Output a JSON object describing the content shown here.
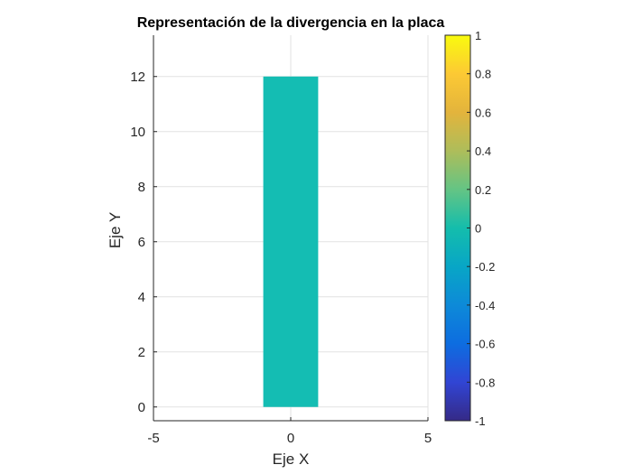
{
  "chart_data": {
    "type": "heatmap",
    "title": "Representación de la divergencia en la placa",
    "xlabel": "Eje X",
    "ylabel": "Eje Y",
    "xlim": [
      -5,
      5
    ],
    "ylim": [
      -0.5,
      13.5
    ],
    "xticks": [
      -5,
      0,
      5
    ],
    "yticks": [
      0,
      2,
      4,
      6,
      8,
      10,
      12
    ],
    "xtick_labels": [
      "-5",
      "0",
      "5"
    ],
    "ytick_labels": [
      "0",
      "2",
      "4",
      "6",
      "8",
      "10",
      "12"
    ],
    "grid": true,
    "plate": {
      "x": [
        -1,
        1
      ],
      "y": [
        0,
        12
      ],
      "value": 0
    },
    "colorbar": {
      "colormap": "parula",
      "clim": [
        -1,
        1
      ],
      "ticks": [
        -1,
        -0.8,
        -0.6,
        -0.4,
        -0.2,
        0,
        0.2,
        0.4,
        0.6,
        0.8,
        1
      ],
      "tick_labels": [
        "-1",
        "-0.8",
        "-0.6",
        "-0.4",
        "-0.2",
        "0",
        "0.2",
        "0.4",
        "0.6",
        "0.8",
        "1"
      ],
      "stops": [
        "#352a87",
        "#3145d4",
        "#0d6de0",
        "#0d8ad8",
        "#08a6c6",
        "#14bdac",
        "#64c484",
        "#aebd5a",
        "#e3b43c",
        "#fcc934",
        "#f9fb0e"
      ]
    },
    "colors": {
      "plate_fill": "#14bdb3",
      "axis": "#262626",
      "grid": "#e2e2e2"
    }
  }
}
